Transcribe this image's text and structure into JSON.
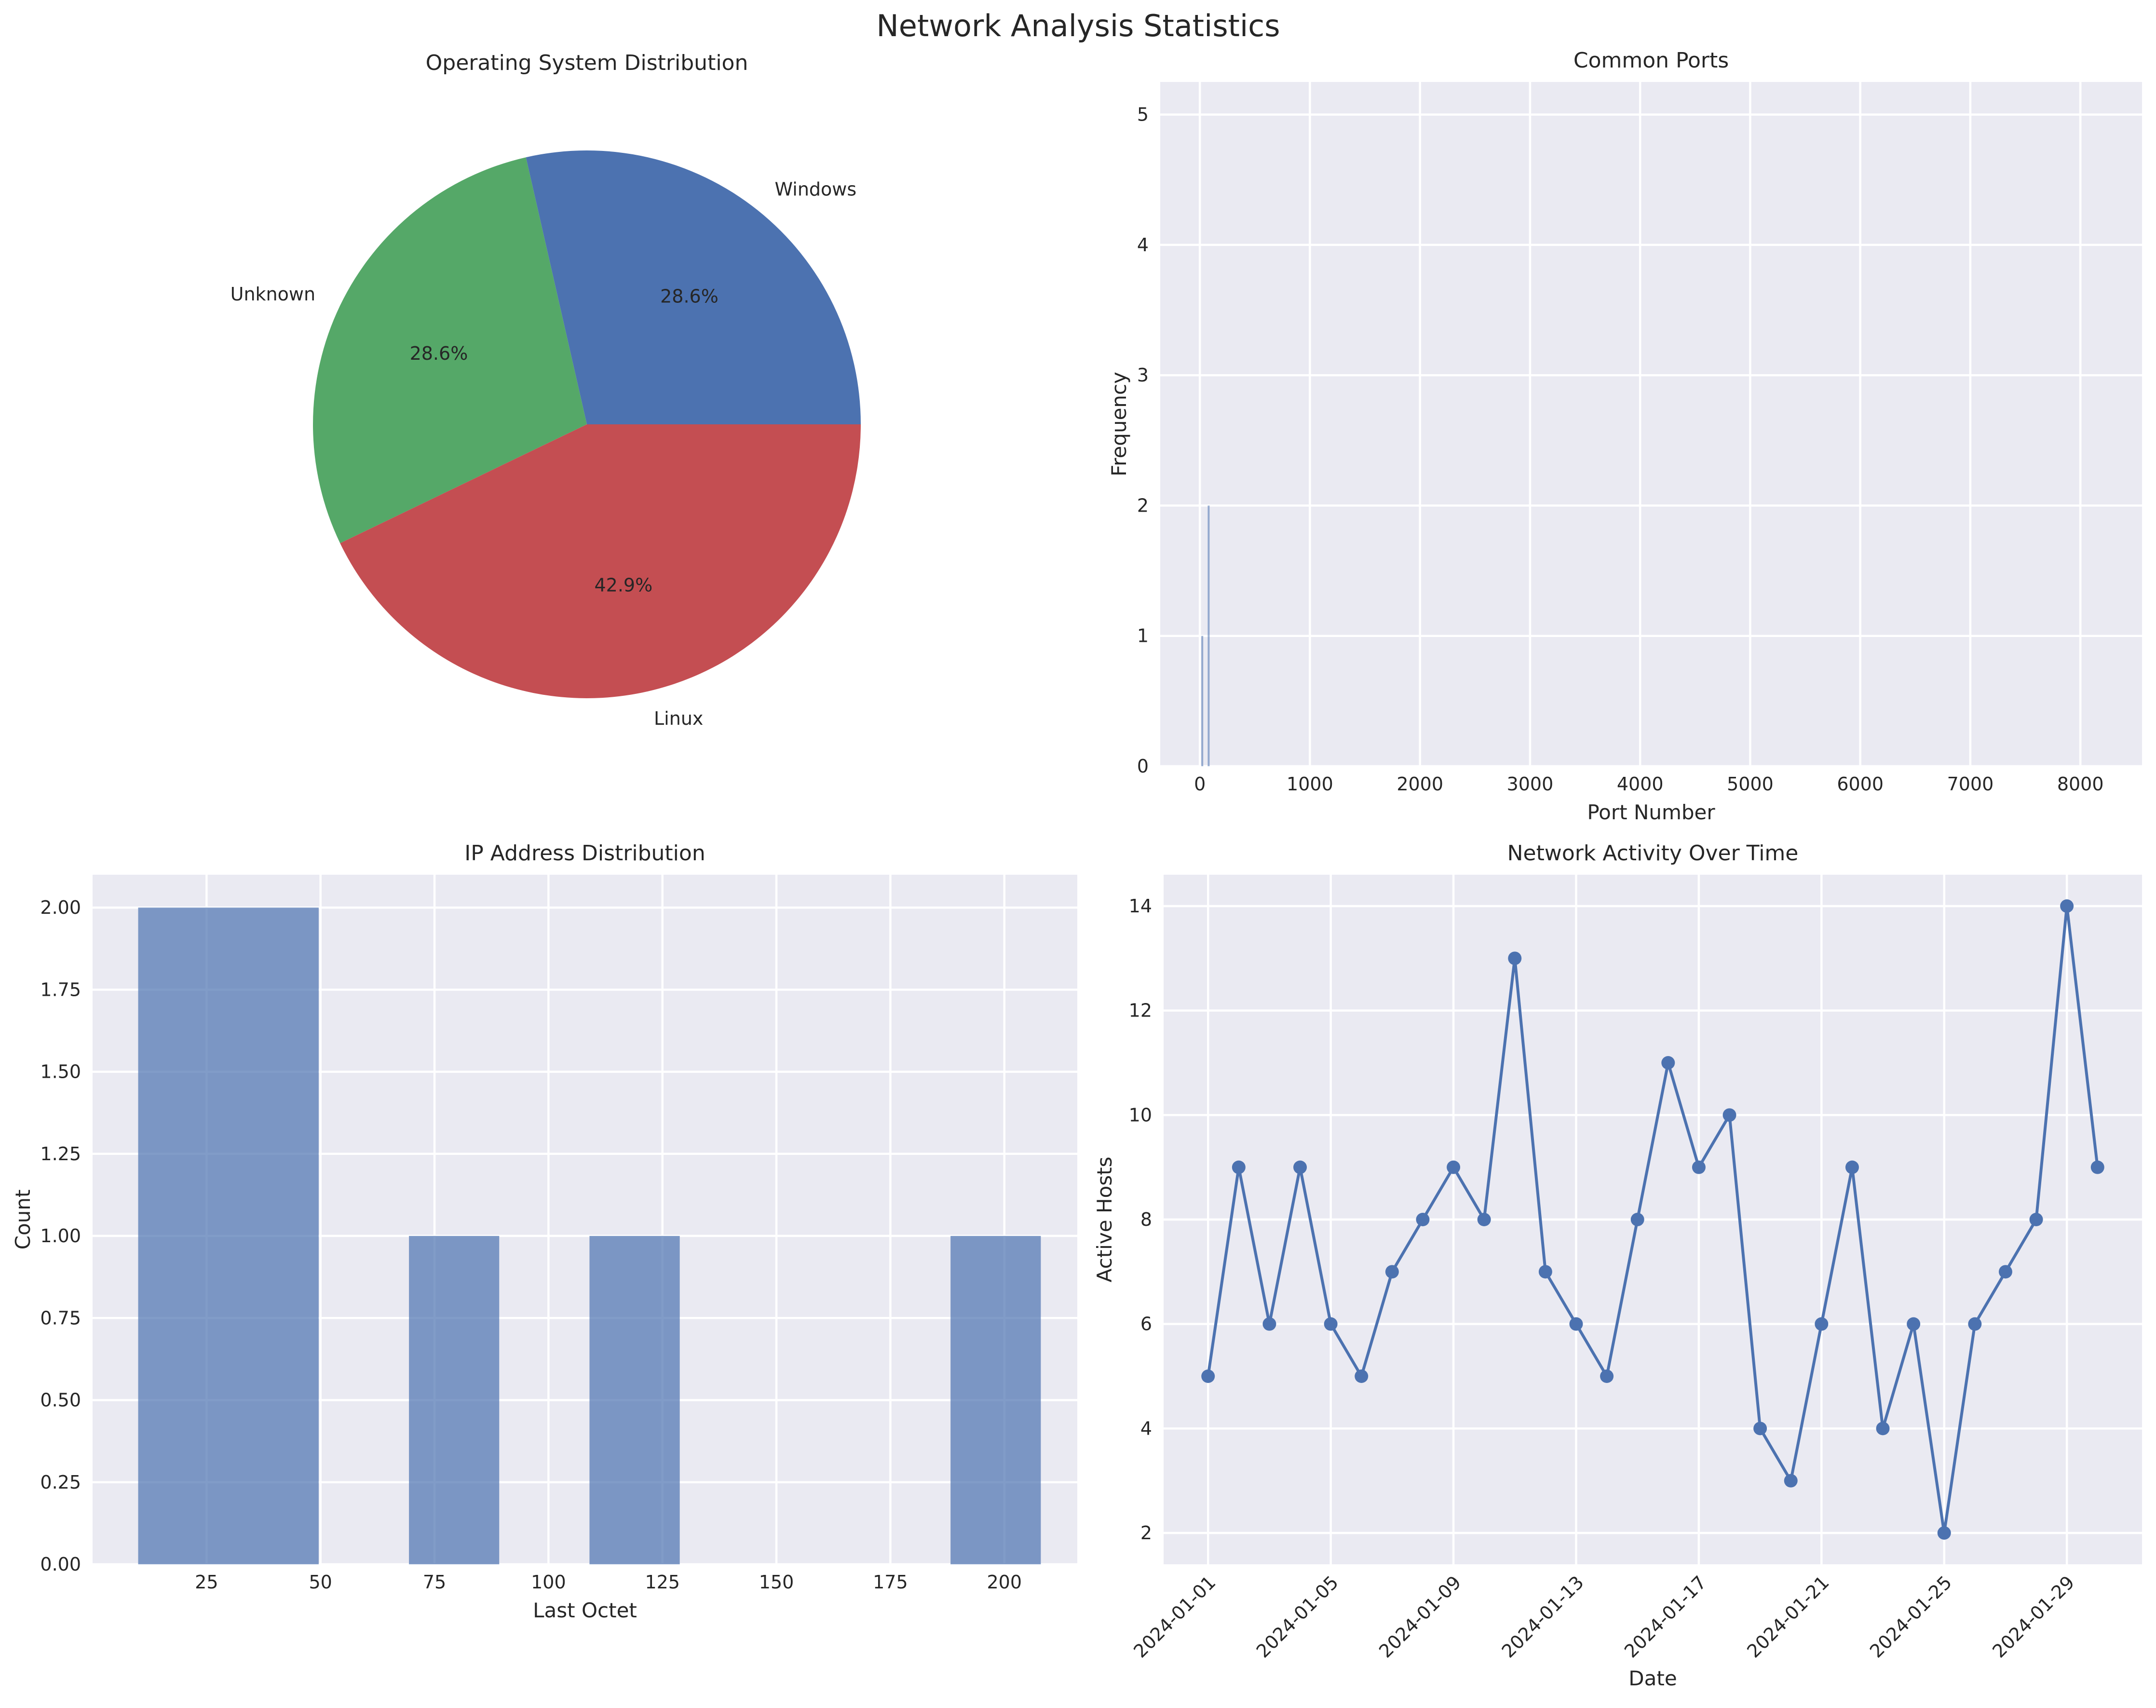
{
  "figure_title": "Network Analysis Statistics",
  "colors": {
    "axes_bg": "#EAEAF2",
    "grid": "#FFFFFF",
    "text": "#262626",
    "blue": "#4C72B0",
    "green": "#55A868",
    "red": "#C44E52"
  },
  "chart_data": [
    {
      "type": "pie",
      "title": "Operating System Distribution",
      "slices": [
        {
          "label": "Windows",
          "value": 28.6,
          "pct_label": "28.6%",
          "color": "#4C72B0"
        },
        {
          "label": "Unknown",
          "value": 28.6,
          "pct_label": "28.6%",
          "color": "#55A868"
        },
        {
          "label": "Linux",
          "value": 42.9,
          "pct_label": "42.9%",
          "color": "#C44E52"
        }
      ],
      "start_angle_deg": 0
    },
    {
      "type": "bar",
      "title": "Common Ports",
      "xlabel": "Port Number",
      "ylabel": "Frequency",
      "xlim": [
        -360,
        8560
      ],
      "ylim": [
        0,
        5.25
      ],
      "xticks": [
        0,
        1000,
        2000,
        3000,
        4000,
        5000,
        6000,
        7000,
        8000
      ],
      "yticks": [
        0,
        1,
        2,
        3,
        4,
        5
      ],
      "bars": [
        {
          "x": 22,
          "value": 1
        },
        {
          "x": 80,
          "value": 2
        }
      ],
      "grid": true
    },
    {
      "type": "bar",
      "title": "IP Address Distribution",
      "xlabel": "Last Octet",
      "ylabel": "Count",
      "xlim": [
        0,
        216
      ],
      "ylim": [
        0,
        2.1
      ],
      "xticks": [
        25,
        50,
        75,
        100,
        125,
        150,
        175,
        200
      ],
      "yticks": [
        "0.00",
        "0.25",
        "0.50",
        "0.75",
        "1.00",
        "1.25",
        "1.50",
        "1.75",
        "2.00"
      ],
      "bins": [
        {
          "from": 10,
          "to": 49.6,
          "count": 2
        },
        {
          "from": 69.4,
          "to": 89.2,
          "count": 1
        },
        {
          "from": 109,
          "to": 128.8,
          "count": 1
        },
        {
          "from": 188.2,
          "to": 208,
          "count": 1
        }
      ],
      "grid": true
    },
    {
      "type": "line",
      "title": "Network Activity Over Time",
      "xlabel": "Date",
      "ylabel": "Active Hosts",
      "ylim": [
        1.4,
        14.6
      ],
      "yticks": [
        2,
        4,
        6,
        8,
        10,
        12,
        14
      ],
      "xticks": [
        "2024-01-01",
        "2024-01-05",
        "2024-01-09",
        "2024-01-13",
        "2024-01-17",
        "2024-01-21",
        "2024-01-25",
        "2024-01-29"
      ],
      "x": [
        "2024-01-01",
        "2024-01-02",
        "2024-01-03",
        "2024-01-04",
        "2024-01-05",
        "2024-01-06",
        "2024-01-07",
        "2024-01-08",
        "2024-01-09",
        "2024-01-10",
        "2024-01-11",
        "2024-01-12",
        "2024-01-13",
        "2024-01-14",
        "2024-01-15",
        "2024-01-16",
        "2024-01-17",
        "2024-01-18",
        "2024-01-19",
        "2024-01-20",
        "2024-01-21",
        "2024-01-22",
        "2024-01-23",
        "2024-01-24",
        "2024-01-25",
        "2024-01-26",
        "2024-01-27",
        "2024-01-28",
        "2024-01-29",
        "2024-01-30"
      ],
      "values": [
        5,
        9,
        6,
        9,
        6,
        5,
        7,
        8,
        9,
        8,
        13,
        7,
        6,
        5,
        8,
        11,
        9,
        10,
        4,
        3,
        6,
        9,
        4,
        6,
        2,
        6,
        7,
        8,
        14,
        9
      ],
      "marker": "circle",
      "grid": true
    }
  ]
}
